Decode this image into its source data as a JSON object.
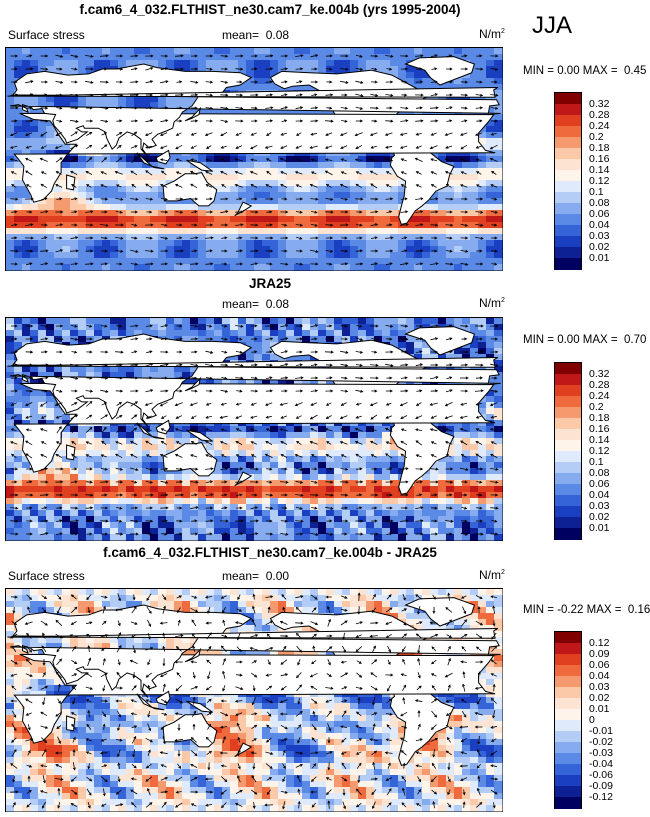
{
  "season": "JJA",
  "panels": [
    {
      "title": "f.cam6_4_032.FLTHIST_ne30.cam7_ke.004b (yrs 1995-2004)",
      "left_label": "Surface stress",
      "mean_label": "mean=",
      "mean_value": "0.08",
      "units": "N/m",
      "units_exp": "2",
      "min_label": "MIN =",
      "min_value": "0.00",
      "max_label": "MAX =",
      "max_value": "0.45",
      "colorbar": {
        "labels": [
          "0.32",
          "0.28",
          "0.24",
          "0.2",
          "0.18",
          "0.16",
          "0.14",
          "0.12",
          "0.1",
          "0.08",
          "0.06",
          "0.04",
          "0.03",
          "0.02",
          "0.01"
        ],
        "colors": [
          "#800000",
          "#c01818",
          "#e04020",
          "#ef6a3c",
          "#f59a6e",
          "#fbc8a8",
          "#fde4d2",
          "#fff4ea",
          "#dfeafc",
          "#b4cdf7",
          "#86acef",
          "#5a89e6",
          "#3564d8",
          "#1a3fc0",
          "#0d2094",
          "#000060"
        ]
      }
    },
    {
      "title": "JRA25",
      "left_label": "",
      "mean_label": "mean=",
      "mean_value": "0.08",
      "units": "N/m",
      "units_exp": "2",
      "min_label": "MIN =",
      "min_value": "0.00",
      "max_label": "MAX =",
      "max_value": "0.70",
      "colorbar": {
        "labels": [
          "0.32",
          "0.28",
          "0.24",
          "0.2",
          "0.18",
          "0.16",
          "0.14",
          "0.12",
          "0.1",
          "0.08",
          "0.06",
          "0.04",
          "0.03",
          "0.02",
          "0.01"
        ],
        "colors": [
          "#800000",
          "#c01818",
          "#e04020",
          "#ef6a3c",
          "#f59a6e",
          "#fbc8a8",
          "#fde4d2",
          "#fff4ea",
          "#dfeafc",
          "#b4cdf7",
          "#86acef",
          "#5a89e6",
          "#3564d8",
          "#1a3fc0",
          "#0d2094",
          "#000060"
        ]
      }
    },
    {
      "title": "f.cam6_4_032.FLTHIST_ne30.cam7_ke.004b - JRA25",
      "left_label": "Surface stress",
      "mean_label": "mean=",
      "mean_value": "0.00",
      "units": "N/m",
      "units_exp": "2",
      "min_label": "MIN =",
      "min_value": "-0.22",
      "max_label": "MAX =",
      "max_value": "0.16",
      "colorbar": {
        "labels": [
          "0.12",
          "0.09",
          "0.06",
          "0.04",
          "0.03",
          "0.02",
          "0.01",
          "0",
          "-0.01",
          "-0.02",
          "-0.03",
          "-0.04",
          "-0.06",
          "-0.09",
          "-0.12"
        ],
        "colors": [
          "#800000",
          "#c01818",
          "#e04020",
          "#ef6a3c",
          "#f59a6e",
          "#fbc8a8",
          "#fde4d2",
          "#fff4ea",
          "#dfeafc",
          "#b4cdf7",
          "#86acef",
          "#5a89e6",
          "#3564d8",
          "#1a3fc0",
          "#0d2094",
          "#000060"
        ]
      }
    }
  ],
  "chart_data": [
    {
      "type": "heatmap",
      "title": "f.cam6_4_032.FLTHIST_ne30.cam7_ke.004b (yrs 1995-2004)",
      "variable": "Surface stress",
      "units": "N/m2",
      "season": "JJA",
      "mean": 0.08,
      "min": 0.0,
      "max": 0.45,
      "levels": [
        0.01,
        0.02,
        0.03,
        0.04,
        0.06,
        0.08,
        0.1,
        0.12,
        0.14,
        0.16,
        0.18,
        0.2,
        0.24,
        0.28,
        0.32
      ]
    },
    {
      "type": "heatmap",
      "title": "JRA25",
      "variable": "Surface stress",
      "units": "N/m2",
      "season": "JJA",
      "mean": 0.08,
      "min": 0.0,
      "max": 0.7,
      "levels": [
        0.01,
        0.02,
        0.03,
        0.04,
        0.06,
        0.08,
        0.1,
        0.12,
        0.14,
        0.16,
        0.18,
        0.2,
        0.24,
        0.28,
        0.32
      ]
    },
    {
      "type": "heatmap",
      "title": "f.cam6_4_032.FLTHIST_ne30.cam7_ke.004b - JRA25",
      "variable": "Surface stress",
      "units": "N/m2",
      "season": "JJA",
      "mean": 0.0,
      "min": -0.22,
      "max": 0.16,
      "levels": [
        -0.12,
        -0.09,
        -0.06,
        -0.04,
        -0.03,
        -0.02,
        -0.01,
        0,
        0.01,
        0.02,
        0.03,
        0.04,
        0.06,
        0.09,
        0.12
      ]
    }
  ]
}
